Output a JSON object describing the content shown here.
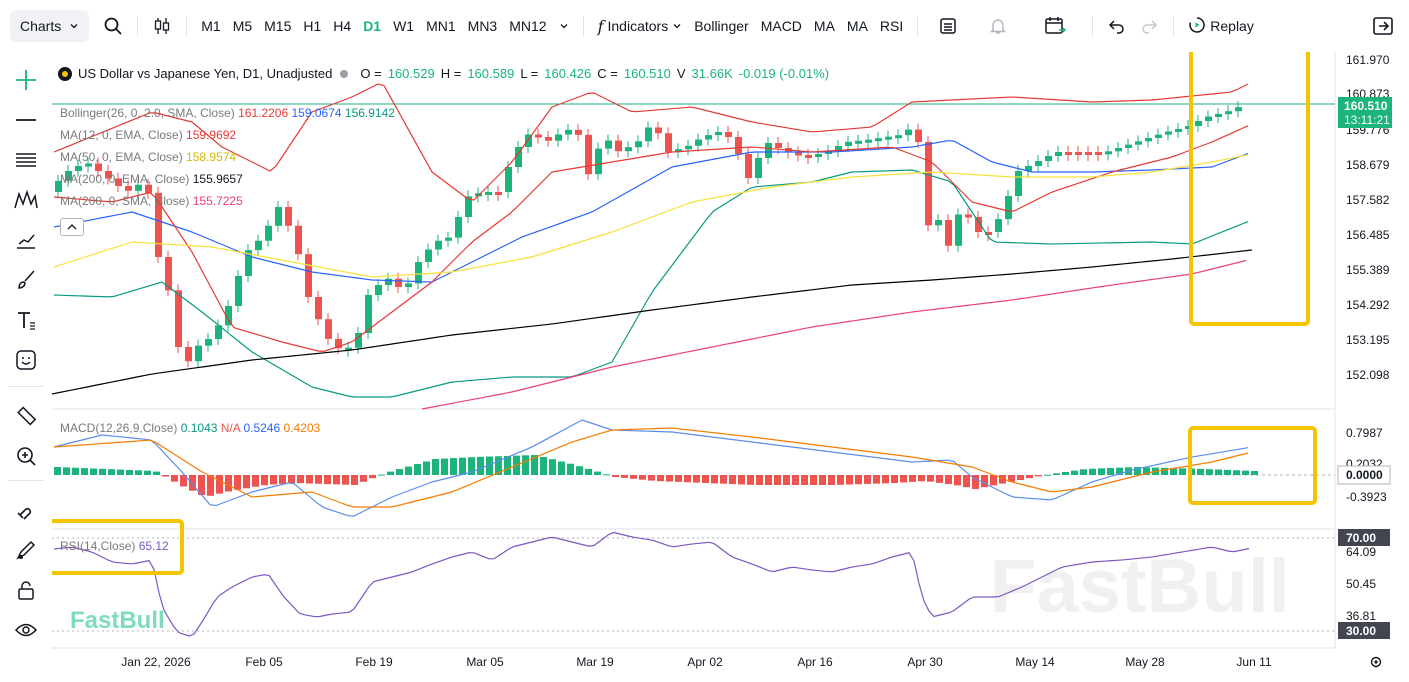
{
  "toolbar": {
    "charts_label": "Charts",
    "timeframes": [
      "M1",
      "M5",
      "M15",
      "H1",
      "H4",
      "D1",
      "W1",
      "MN1",
      "MN3",
      "MN12"
    ],
    "active_timeframe": "D1",
    "indicators_label": "Indicators",
    "quick_indicators": [
      "Bollinger",
      "MACD",
      "MA",
      "MA",
      "RSI"
    ],
    "replay_label": "Replay"
  },
  "symbol": {
    "name": "US Dollar vs Japanese Yen, D1, Unadjusted",
    "ohlc": {
      "o_label": "O =",
      "o": "160.529",
      "h_label": "H =",
      "h": "160.589",
      "l_label": "L =",
      "l": "160.426",
      "c_label": "C =",
      "c": "160.510",
      "v_label": "V",
      "v": "31.66K",
      "change": "-0.019 (-0.01%)"
    }
  },
  "indicators": {
    "bollinger": {
      "label": "Bollinger(26, 0, 2.0, SMA, Close)",
      "v1": "161.2206",
      "v2": "159.0674",
      "v3": "156.9142"
    },
    "ma12": {
      "label": "MA(12, 0, EMA, Close)",
      "value": "159.9692"
    },
    "ma50": {
      "label": "MA(50, 0, EMA, Close)",
      "value": "158.9574"
    },
    "ma200e": {
      "label": "MA(200, 0, EMA, Close)",
      "value": "155.9657"
    },
    "ma200s": {
      "label": "MA(200, 0, SMA, Close)",
      "value": "155.7225"
    },
    "macd": {
      "label": "MACD(12,26,9,Close)",
      "v1": "0.1043",
      "v2": "N/A",
      "v3": "0.5246",
      "v4": "0.4203"
    },
    "rsi": {
      "label": "RSI(14,Close)",
      "value": "65.12"
    }
  },
  "price_axis": {
    "ticks": [
      "161.970",
      "160.873",
      "159.776",
      "158.679",
      "157.582",
      "156.485",
      "155.389",
      "154.292",
      "153.195",
      "152.098"
    ],
    "current_price": "160.510",
    "countdown": "13:11:21"
  },
  "macd_axis": {
    "ticks": [
      "0.7987",
      "0.2032",
      "0.0000",
      "-0.3923"
    ]
  },
  "rsi_axis": {
    "ticks": [
      "70.00",
      "64.09",
      "50.45",
      "36.81",
      "30.00"
    ]
  },
  "time_axis": {
    "labels": [
      "Jan 22, 2026",
      "Feb 05",
      "Feb 19",
      "Mar 05",
      "Mar 19",
      "Apr 02",
      "Apr 16",
      "Apr 30",
      "May 14",
      "May 28",
      "Jun 11"
    ]
  },
  "watermark": "FastBull",
  "colors": {
    "up": "#1bb47a",
    "down": "#ef5350",
    "highlight": "#f5c400",
    "boll_upper": "#e53935",
    "boll_mid": "#2962ff",
    "boll_lower": "#089981",
    "ma50": "#f5e23a",
    "ma200": "#000000",
    "ma200s": "#ec407a",
    "rsi": "#7e57c2"
  }
}
